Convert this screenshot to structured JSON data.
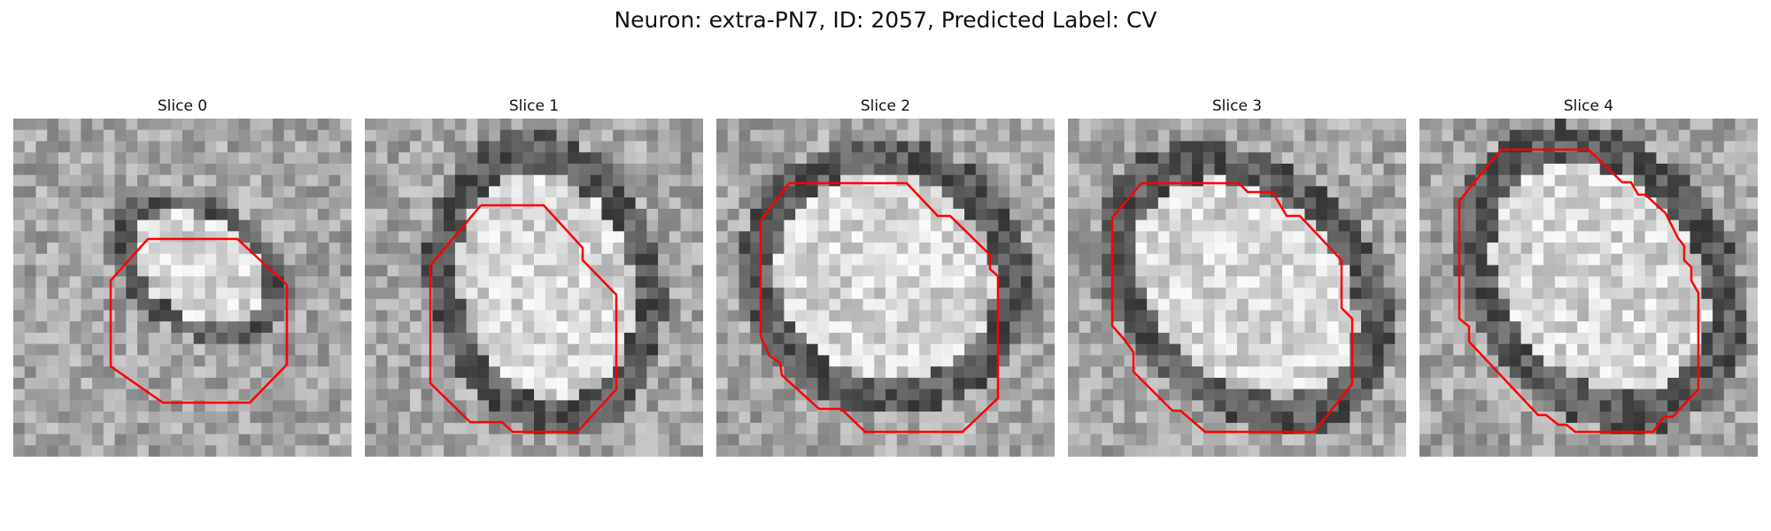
{
  "figure": {
    "title": "Neuron: extra-PN7, ID: 2057, Predicted Label: CV"
  },
  "panels": [
    {
      "title": "Slice 0"
    },
    {
      "title": "Slice 1"
    },
    {
      "title": "Slice 2"
    },
    {
      "title": "Slice 3"
    },
    {
      "title": "Slice 4"
    }
  ],
  "style": {
    "contour_color": "#ff0000",
    "colormap": "grayscale"
  }
}
